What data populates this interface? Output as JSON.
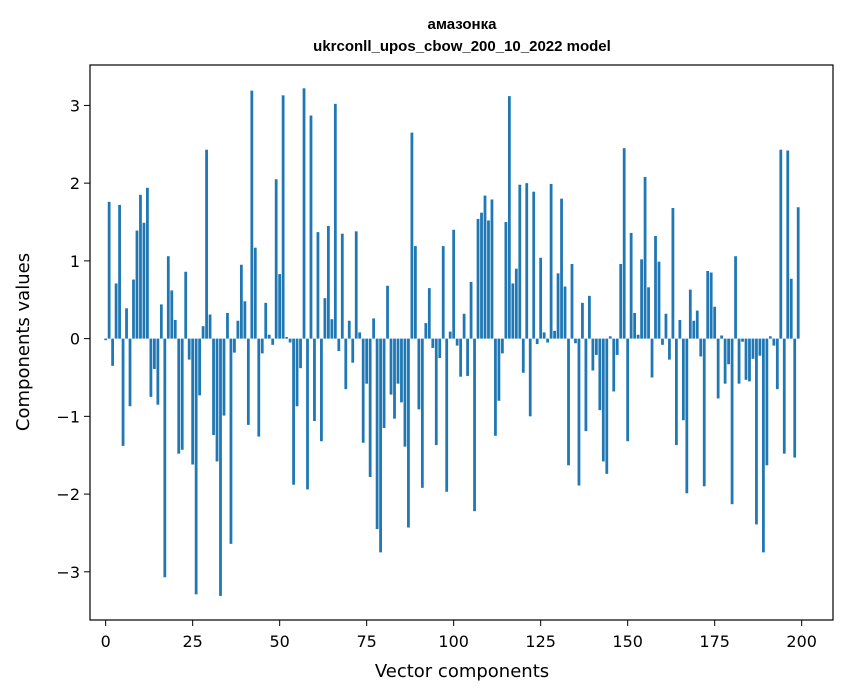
{
  "chart_data": {
    "type": "bar",
    "title_line1": "амазонка",
    "title_line2": "ukrconll_upos_cbow_200_10_2022 model",
    "xlabel": "Vector components",
    "ylabel": "Components values",
    "xlim": [
      -4.5,
      209
    ],
    "ylim": [
      -3.62,
      3.52
    ],
    "xticks": [
      0,
      25,
      50,
      75,
      100,
      125,
      150,
      175,
      200
    ],
    "yticks": [
      -3,
      -2,
      -1,
      0,
      1,
      2,
      3
    ],
    "ytick_labels": [
      "−3",
      "−2",
      "−1",
      "0",
      "1",
      "2",
      "3"
    ],
    "grid": false,
    "bar_color": "#1f77b4",
    "values": [
      -0.02,
      1.76,
      -0.35,
      0.71,
      1.72,
      -1.38,
      0.39,
      -0.87,
      0.76,
      1.39,
      1.85,
      1.49,
      1.94,
      -0.75,
      -0.39,
      -0.85,
      0.44,
      -3.07,
      1.06,
      0.62,
      0.24,
      -1.48,
      -1.43,
      0.86,
      -0.27,
      -1.62,
      -3.29,
      -0.73,
      0.16,
      2.43,
      0.31,
      -1.24,
      -1.58,
      -3.31,
      -0.99,
      0.33,
      -2.64,
      -0.18,
      0.23,
      0.95,
      0.48,
      -1.11,
      3.19,
      1.17,
      -1.26,
      -0.19,
      0.46,
      0.05,
      -0.08,
      2.05,
      0.83,
      3.13,
      0.02,
      -0.05,
      -1.88,
      -0.87,
      -0.38,
      3.22,
      -1.94,
      2.87,
      -1.06,
      1.37,
      -1.32,
      0.52,
      1.45,
      0.25,
      3.02,
      -0.16,
      1.35,
      -0.65,
      0.23,
      -0.31,
      1.38,
      0.08,
      -1.34,
      -0.58,
      -1.78,
      0.26,
      -2.45,
      -2.75,
      -1.15,
      0.68,
      -0.72,
      -1.03,
      -0.58,
      -0.82,
      -1.39,
      -2.43,
      2.65,
      1.19,
      -0.91,
      -1.92,
      0.2,
      0.65,
      -0.12,
      -1.37,
      -0.25,
      1.19,
      -1.97,
      0.09,
      1.4,
      -0.09,
      -0.49,
      0.32,
      -0.48,
      0.73,
      -2.22,
      1.54,
      1.62,
      1.84,
      1.52,
      1.79,
      -1.25,
      -0.8,
      -0.19,
      1.5,
      3.12,
      0.71,
      0.9,
      1.98,
      -0.44,
      2.0,
      -1.0,
      1.89,
      -0.07,
      1.04,
      0.08,
      -0.05,
      1.99,
      0.1,
      0.84,
      1.8,
      0.67,
      -1.63,
      0.96,
      -0.06,
      -1.89,
      0.46,
      -1.19,
      0.55,
      -0.41,
      -0.21,
      -0.92,
      -1.58,
      -1.74,
      0.03,
      -0.68,
      -0.21,
      0.96,
      2.45,
      -1.32,
      1.36,
      0.33,
      0.05,
      1.02,
      2.08,
      0.66,
      -0.5,
      1.32,
      0.99,
      -0.08,
      0.32,
      -0.27,
      1.68,
      -1.37,
      0.24,
      -1.05,
      -1.99,
      0.63,
      0.23,
      0.36,
      -0.23,
      -1.9,
      0.87,
      0.85,
      0.41,
      -0.77,
      0.04,
      -0.58,
      -0.33,
      -2.13,
      1.06,
      -0.58,
      -0.04,
      -0.53,
      -0.55,
      -0.26,
      -2.39,
      -0.22,
      -2.75,
      -1.63,
      0.03,
      -0.09,
      -0.65,
      2.43,
      -1.48,
      2.42,
      0.77,
      -1.53,
      1.69
    ]
  }
}
